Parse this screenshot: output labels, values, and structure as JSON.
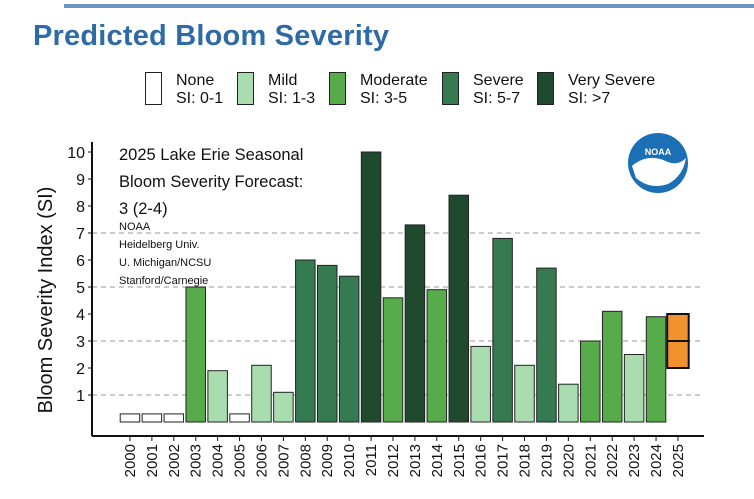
{
  "title": "Predicted Bloom Severity",
  "legend": [
    {
      "name": "None",
      "range": "SI: 0-1",
      "color": "#ffffff"
    },
    {
      "name": "Mild",
      "range": "SI: 1-3",
      "color": "#a9dcae"
    },
    {
      "name": "Moderate",
      "range": "SI: 3-5",
      "color": "#58ab4b"
    },
    {
      "name": "Severe",
      "range": "SI: 5-7",
      "color": "#357a50"
    },
    {
      "name": "Very Severe",
      "range": "SI: >7",
      "color": "#1f4a2d"
    }
  ],
  "annotation": {
    "line1": "2025 Lake Erie Seasonal",
    "line2": "Bloom Severity Forecast:",
    "line3": "3 (2-4)",
    "sources": [
      "NOAA",
      "Heidelberg Univ.",
      "U. Michigan/NCSU",
      "Stanford/Carnegie"
    ]
  },
  "logo_text": "NOAA",
  "forecast_color": "#f2922f",
  "chart_data": {
    "type": "bar",
    "title": "Predicted Bloom Severity",
    "xlabel": "",
    "ylabel": "Bloom Severity Index (SI)",
    "ylim": [
      0,
      10.6
    ],
    "yticks": [
      1,
      2,
      3,
      4,
      5,
      6,
      7,
      8,
      9,
      10
    ],
    "gridlines": [
      1,
      3,
      5,
      7
    ],
    "categories": [
      "2000",
      "2001",
      "2002",
      "2003",
      "2004",
      "2005",
      "2006",
      "2007",
      "2008",
      "2009",
      "2010",
      "2011",
      "2012",
      "2013",
      "2014",
      "2015",
      "2016",
      "2017",
      "2018",
      "2019",
      "2020",
      "2021",
      "2022",
      "2023",
      "2024",
      "2025"
    ],
    "values": [
      0.3,
      0.3,
      0.3,
      5.0,
      1.9,
      0.3,
      2.1,
      1.1,
      6.0,
      5.8,
      5.4,
      10.0,
      4.6,
      7.3,
      4.9,
      8.4,
      2.8,
      6.8,
      2.1,
      5.7,
      1.4,
      3.0,
      4.1,
      2.5,
      3.9,
      3
    ],
    "severity": [
      "None",
      "None",
      "None",
      "Moderate",
      "Mild",
      "None",
      "Mild",
      "Mild",
      "Severe",
      "Severe",
      "Severe",
      "Very Severe",
      "Moderate",
      "Very Severe",
      "Moderate",
      "Very Severe",
      "Mild",
      "Severe",
      "Mild",
      "Severe",
      "Mild",
      "Moderate",
      "Moderate",
      "Mild",
      "Moderate",
      "Forecast"
    ],
    "forecast": {
      "year": "2025",
      "value": 3,
      "low": 2,
      "high": 4
    }
  }
}
